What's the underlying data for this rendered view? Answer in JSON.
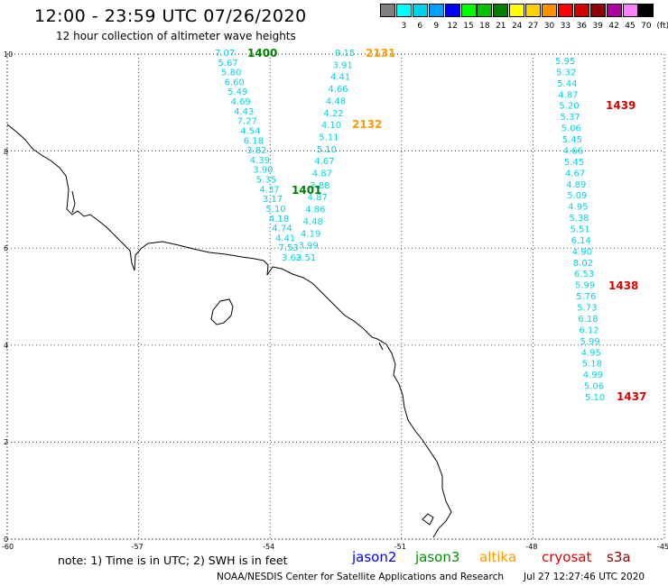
{
  "header": {
    "title": "12:00 - 23:59 UTC 07/26/2020",
    "subtitle": "12 hour collection of altimeter wave heights"
  },
  "colorbar": {
    "unit": "(ft)",
    "items": [
      {
        "label": "",
        "color": "#808080"
      },
      {
        "label": "3",
        "color": "#00ffff"
      },
      {
        "label": "6",
        "color": "#00d0e8"
      },
      {
        "label": "9",
        "color": "#00a0ff"
      },
      {
        "label": "12",
        "color": "#0000ff"
      },
      {
        "label": "15",
        "color": "#00ff00"
      },
      {
        "label": "18",
        "color": "#00c000"
      },
      {
        "label": "21",
        "color": "#008000"
      },
      {
        "label": "24",
        "color": "#ffff00"
      },
      {
        "label": "27",
        "color": "#ffd000"
      },
      {
        "label": "30",
        "color": "#ff9000"
      },
      {
        "label": "33",
        "color": "#ff0000"
      },
      {
        "label": "36",
        "color": "#d00000"
      },
      {
        "label": "39",
        "color": "#900000"
      },
      {
        "label": "42",
        "color": "#b000a0"
      },
      {
        "label": "45",
        "color": "#ff80ff"
      },
      {
        "label": "70",
        "color": "#000000"
      }
    ]
  },
  "axes": {
    "lon_ticks": [
      "-60",
      "-57",
      "-54",
      "-51",
      "-48",
      "-45"
    ],
    "lat_ticks": [
      "0",
      "2",
      "4",
      "6",
      "8",
      "10"
    ]
  },
  "tracks": [
    {
      "pass": "1400",
      "color": "#008000",
      "values": [
        "7.07",
        "5.67",
        "5.80",
        "6.60",
        "5.49",
        "4.69",
        "4.43",
        "7.27",
        "4.54",
        "6.18",
        "3.82",
        "4.39",
        "3.90",
        "5.35",
        "4.37",
        "3.17",
        "5.10",
        "4.18",
        "4.74",
        "4.41",
        "7.53",
        "3.62"
      ]
    },
    {
      "pass": "2131",
      "color": "#ff9900",
      "values": [
        "9.15",
        "3.91",
        "4.41",
        "4.66",
        "4.48",
        "4.22",
        "4.10",
        "5.11",
        "5.10",
        "4.67",
        "4.87",
        "3.88",
        "4.87",
        "4.86",
        "4.48",
        "4.19",
        "3.99",
        "3.51"
      ]
    },
    {
      "pass": "2132",
      "color": "#ff9900",
      "values": []
    },
    {
      "pass": "1401",
      "color": "#008000",
      "values": []
    },
    {
      "pass": "1439",
      "color": "#e00000",
      "values": [
        "5.95",
        "5.32",
        "5.44",
        "4.87",
        "5.20",
        "5.37",
        "5.06",
        "5.45",
        "4.66",
        "5.45",
        "4.67",
        "4.89",
        "5.09",
        "4.95",
        "5.38",
        "5.51",
        "6.14",
        "4.90",
        "8.02",
        "6.53",
        "5.99",
        "5.76",
        "5.73",
        "6.18",
        "6.12",
        "5.99",
        "4.95",
        "5.18",
        "4.99",
        "5.06",
        "5.10"
      ]
    },
    {
      "pass": "1438",
      "color": "#e00000",
      "values": []
    },
    {
      "pass": "1437",
      "color": "#e00000",
      "values": []
    }
  ],
  "footer": {
    "note": "note: 1) Time is in UTC; 2) SWH is in feet",
    "satellites": [
      {
        "name": "jason2",
        "color": "#0000ff"
      },
      {
        "name": "jason3",
        "color": "#009000"
      },
      {
        "name": "altika",
        "color": "#ff9900"
      },
      {
        "name": "cryosat",
        "color": "#e00000"
      },
      {
        "name": "s3a",
        "color": "#900000"
      }
    ],
    "credit": "NOAA/NESDIS Center for Satellite Applications and Research",
    "timestamp": "Jul 27 12:27:46 UTC 2020"
  }
}
